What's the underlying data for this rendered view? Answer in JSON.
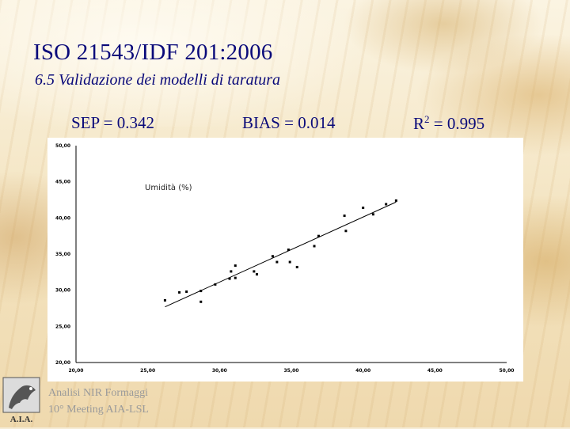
{
  "slide": {
    "title": "ISO 21543/IDF 201:2006",
    "subtitle": "6.5  Validazione dei modelli di taratura",
    "metrics": {
      "sep": "SEP = 0.342",
      "bias": "BIAS = 0.014",
      "r2_prefix": "R",
      "r2_sup": "2",
      "r2_suffix": " = 0.995"
    },
    "footer_line1": "Analisi NIR Formaggi",
    "footer_line2": "10° Meeting AIA-LSL",
    "logo_text": "A.I.A."
  },
  "colors": {
    "title": "#0a0a7a",
    "points": "#000000",
    "fit_line": "#000000",
    "footer": "#9a9a9a"
  },
  "chart_data": {
    "type": "scatter",
    "series_label": "Umidità (%)",
    "xlim": [
      20,
      50
    ],
    "ylim": [
      20,
      50
    ],
    "x_ticks": [
      "20,00",
      "25,00",
      "30,00",
      "35,00",
      "40,00",
      "45,00",
      "50,00"
    ],
    "y_ticks": [
      "20,00",
      "25,00",
      "30,00",
      "35,00",
      "40,00",
      "45,00",
      "50,00"
    ],
    "tick_values": [
      20,
      25,
      30,
      35,
      40,
      45,
      50
    ],
    "grid": false,
    "fit_line": {
      "x": [
        26.2,
        42.3
      ],
      "y": [
        27.7,
        42.2
      ]
    },
    "points": [
      {
        "x": 26.2,
        "y": 28.6
      },
      {
        "x": 27.2,
        "y": 29.7
      },
      {
        "x": 27.7,
        "y": 29.8
      },
      {
        "x": 28.7,
        "y": 28.4
      },
      {
        "x": 28.7,
        "y": 29.9
      },
      {
        "x": 29.7,
        "y": 30.8
      },
      {
        "x": 30.7,
        "y": 31.6
      },
      {
        "x": 30.8,
        "y": 32.6
      },
      {
        "x": 31.1,
        "y": 31.7
      },
      {
        "x": 31.1,
        "y": 33.4
      },
      {
        "x": 32.4,
        "y": 32.6
      },
      {
        "x": 32.6,
        "y": 32.2
      },
      {
        "x": 33.7,
        "y": 34.7
      },
      {
        "x": 34.0,
        "y": 33.9
      },
      {
        "x": 34.8,
        "y": 35.6
      },
      {
        "x": 34.9,
        "y": 33.9
      },
      {
        "x": 35.4,
        "y": 33.2
      },
      {
        "x": 36.6,
        "y": 36.1
      },
      {
        "x": 36.9,
        "y": 37.5
      },
      {
        "x": 38.7,
        "y": 40.3
      },
      {
        "x": 38.8,
        "y": 38.2
      },
      {
        "x": 40.0,
        "y": 41.4
      },
      {
        "x": 40.7,
        "y": 40.5
      },
      {
        "x": 41.6,
        "y": 41.9
      },
      {
        "x": 42.3,
        "y": 42.4
      }
    ]
  }
}
